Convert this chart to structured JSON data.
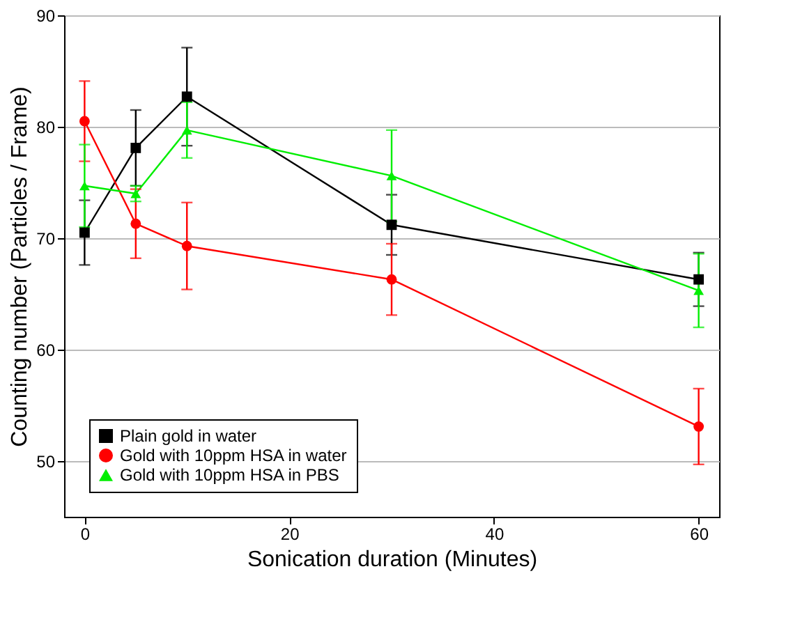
{
  "chart_data": {
    "type": "line",
    "xlabel": "Sonication duration (Minutes)",
    "ylabel": "Counting number (Particles / Frame)",
    "x": [
      0,
      5,
      10,
      30,
      60
    ],
    "series": [
      {
        "name": "Plain gold in water",
        "color": "#000000",
        "marker": "square",
        "values": [
          70.5,
          78.1,
          82.7,
          71.2,
          66.3
        ],
        "errors": [
          2.9,
          3.4,
          4.4,
          2.7,
          2.4
        ]
      },
      {
        "name": "Gold with 10ppm HSA in water",
        "color": "#ff0000",
        "marker": "circle",
        "values": [
          80.5,
          71.3,
          69.3,
          66.3,
          53.1
        ],
        "errors": [
          3.6,
          3.1,
          3.9,
          3.2,
          3.4
        ]
      },
      {
        "name": "Gold with 10ppm HSA in PBS",
        "color": "#00ee00",
        "marker": "triangle",
        "values": [
          74.7,
          74.0,
          79.7,
          75.6,
          65.3
        ],
        "errors": [
          3.7,
          0.7,
          2.5,
          4.1,
          3.3
        ]
      }
    ],
    "xlim": [
      -2,
      62
    ],
    "xticks": [
      0,
      20,
      40,
      60
    ],
    "ylim": [
      45,
      90
    ],
    "yticks": [
      50,
      60,
      70,
      80,
      90
    ],
    "grid": "y",
    "legend": "bottom left",
    "line_style": "solid"
  }
}
